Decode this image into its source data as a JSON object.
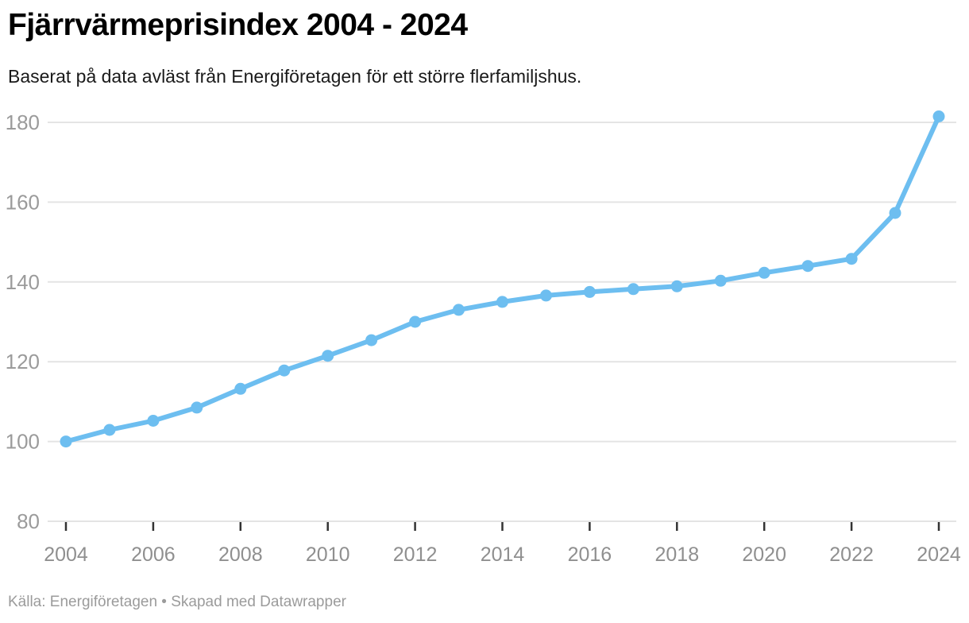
{
  "header": {
    "title": "Fjärrvärmeprisindex 2004 - 2024",
    "subtitle": "Baserat på data avläst från Energiföretagen för ett större flerfamiljshus."
  },
  "footer": {
    "text": "Källa: Energiföretagen • Skapad med Datawrapper"
  },
  "colors": {
    "line": "#6dbef0",
    "marker": "#6dbef0",
    "grid": "#e4e4e4",
    "y_axis_label": "#9b9b9b",
    "x_axis_label": "#8f8f8f",
    "x_tick_mark": "#333333",
    "title": "#000000",
    "subtitle": "#1a1a1a",
    "source": "#9b9b9b",
    "background": "#ffffff"
  },
  "chart_data": {
    "type": "line",
    "title": "Fjärrvärmeprisindex 2004 - 2024",
    "subtitle": "Baserat på data avläst från Energiföretagen för ett större flerfamiljshus.",
    "xlabel": "",
    "ylabel": "",
    "x": [
      2004,
      2005,
      2006,
      2007,
      2008,
      2009,
      2010,
      2011,
      2012,
      2013,
      2014,
      2015,
      2016,
      2017,
      2018,
      2019,
      2020,
      2021,
      2022,
      2023,
      2024
    ],
    "series": [
      {
        "name": "Fjärrvärmeprisindex",
        "values": [
          100,
          102.9,
          105.2,
          108.5,
          113.2,
          117.8,
          121.5,
          125.4,
          130,
          133,
          135,
          136.6,
          137.5,
          138.2,
          138.9,
          140.3,
          142.3,
          144,
          145.8,
          157.3,
          181.5
        ]
      }
    ],
    "ylim": [
      80,
      180
    ],
    "y_ticks": [
      80,
      100,
      120,
      140,
      160,
      180
    ],
    "x_ticks": [
      2004,
      2006,
      2008,
      2010,
      2012,
      2014,
      2016,
      2018,
      2020,
      2022,
      2024
    ],
    "grid": "horizontal",
    "legend": "none",
    "marker": "circle",
    "source": "Källa: Energiföretagen • Skapad med Datawrapper"
  }
}
